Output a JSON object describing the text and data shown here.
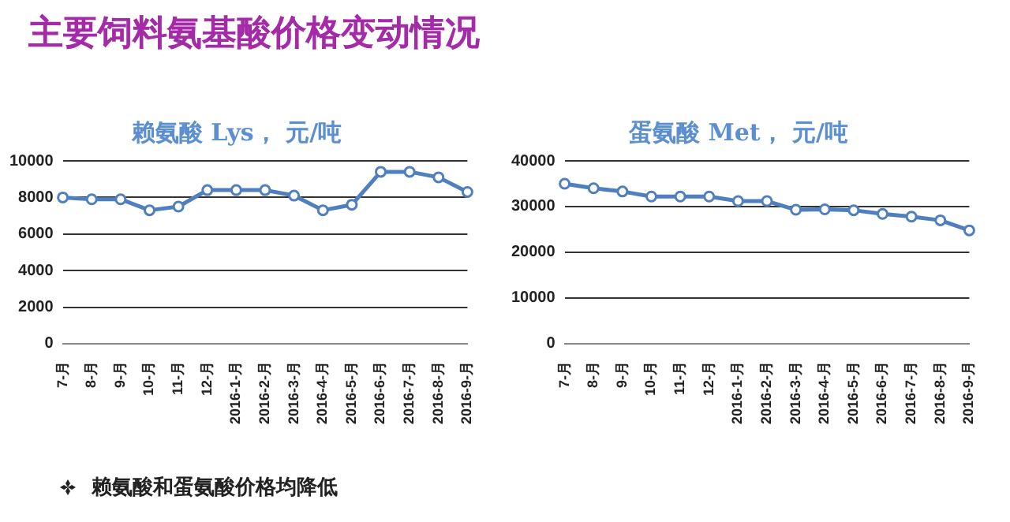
{
  "chart_data": [
    {
      "type": "line",
      "title": "赖氨酸 Lys， 元/吨",
      "annotations": [
        "主要饲料氨基酸价格变动情况",
        "赖氨酸和蛋氨酸价格均降低"
      ],
      "categories": [
        "7-月",
        "8-月",
        "9-月",
        "10-月",
        "11-月",
        "12-月",
        "2016-1-月",
        "2016-2-月",
        "2016-3-月",
        "2016-4-月",
        "2016-5-月",
        "2016-6-月",
        "2016-7-月",
        "2016-8-月",
        "2016-9-月"
      ],
      "series": [
        {
          "color": "#4f7fbf",
          "values": [
            8000,
            7900,
            7900,
            7300,
            7500,
            8400,
            8400,
            8400,
            8100,
            7300,
            7600,
            9400,
            9400,
            9100,
            8300
          ]
        }
      ],
      "ylim": [
        0,
        10000
      ],
      "yticks": [
        0,
        2000,
        4000,
        6000,
        8000,
        10000
      ],
      "grid": "y",
      "legend": false,
      "marker": "circle"
    },
    {
      "type": "line",
      "title": "蛋氨酸 Met， 元/吨",
      "categories": [
        "7-月",
        "8-月",
        "9-月",
        "10-月",
        "11-月",
        "12-月",
        "2016-1-月",
        "2016-2-月",
        "2016-3-月",
        "2016-4-月",
        "2016-5-月",
        "2016-6-月",
        "2016-7-月",
        "2016-8-月",
        "2016-9-月"
      ],
      "series": [
        {
          "color": "#4f7fbf",
          "values": [
            35000,
            34000,
            33300,
            32200,
            32200,
            32200,
            31200,
            31200,
            29300,
            29400,
            29200,
            28400,
            27800,
            27000,
            24800
          ]
        }
      ],
      "ylim": [
        0,
        40000
      ],
      "yticks": [
        0,
        10000,
        20000,
        30000,
        40000
      ],
      "grid": "y",
      "legend": false,
      "marker": "circle"
    }
  ]
}
